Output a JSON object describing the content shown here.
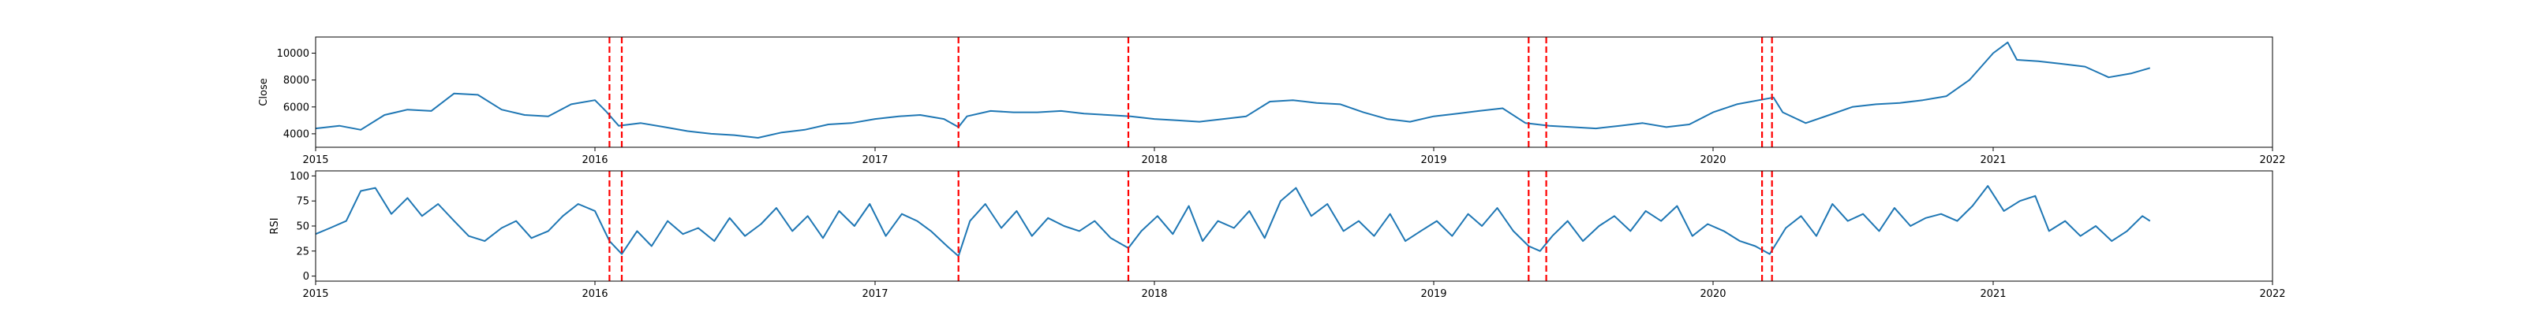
{
  "chart_data": [
    {
      "type": "line",
      "ylabel": "Close",
      "xlim": [
        "2015-01-01",
        "2022-01-01"
      ],
      "ylim": [
        3000,
        11200
      ],
      "x_ticks": [
        "2015",
        "2016",
        "2017",
        "2018",
        "2019",
        "2020",
        "2021",
        "2022"
      ],
      "y_ticks": [
        "4000",
        "6000",
        "8000",
        "10000"
      ],
      "y_tick_values": [
        4000,
        6000,
        8000,
        10000
      ],
      "grid": false,
      "line_color": "#1f77b4",
      "series": [
        {
          "x": [
            "2015-01-01",
            "2015-02-01",
            "2015-03-01",
            "2015-04-01",
            "2015-05-01",
            "2015-06-01",
            "2015-07-01",
            "2015-08-01",
            "2015-09-01",
            "2015-10-01",
            "2015-11-01",
            "2015-12-01",
            "2016-01-01",
            "2016-01-15",
            "2016-02-01",
            "2016-03-01",
            "2016-04-01",
            "2016-05-01",
            "2016-06-01",
            "2016-07-01",
            "2016-08-01",
            "2016-09-01",
            "2016-10-01",
            "2016-11-01",
            "2016-12-01",
            "2017-01-01",
            "2017-02-01",
            "2017-03-01",
            "2017-04-01",
            "2017-04-20",
            "2017-05-01",
            "2017-06-01",
            "2017-07-01",
            "2017-08-01",
            "2017-09-01",
            "2017-10-01",
            "2017-11-01",
            "2017-12-01",
            "2018-01-01",
            "2018-02-01",
            "2018-03-01",
            "2018-04-01",
            "2018-05-01",
            "2018-06-01",
            "2018-07-01",
            "2018-08-01",
            "2018-09-01",
            "2018-10-01",
            "2018-11-01",
            "2018-12-01",
            "2019-01-01",
            "2019-02-01",
            "2019-03-01",
            "2019-04-01",
            "2019-05-01",
            "2019-06-01",
            "2019-07-01",
            "2019-08-01",
            "2019-09-01",
            "2019-10-01",
            "2019-11-01",
            "2019-12-01",
            "2020-01-01",
            "2020-02-01",
            "2020-03-01",
            "2020-03-20",
            "2020-04-01",
            "2020-05-01",
            "2020-06-01",
            "2020-07-01",
            "2020-08-01",
            "2020-09-01",
            "2020-10-01",
            "2020-11-01",
            "2020-12-01",
            "2021-01-01",
            "2021-01-20",
            "2021-02-01",
            "2021-03-01",
            "2021-04-01",
            "2021-05-01",
            "2021-06-01",
            "2021-07-01",
            "2021-07-25"
          ],
          "values": [
            4400,
            4600,
            4300,
            5400,
            5800,
            5700,
            7000,
            6900,
            5800,
            5400,
            5300,
            6200,
            6500,
            5700,
            4600,
            4800,
            4500,
            4200,
            4000,
            3900,
            3700,
            4100,
            4300,
            4700,
            4800,
            5100,
            5300,
            5400,
            5100,
            4500,
            5300,
            5700,
            5600,
            5600,
            5700,
            5500,
            5400,
            5300,
            5100,
            5000,
            4900,
            5100,
            5300,
            6400,
            6500,
            6300,
            6200,
            5600,
            5100,
            4900,
            5300,
            5500,
            5700,
            5900,
            4800,
            4600,
            4500,
            4400,
            4600,
            4800,
            4500,
            4700,
            5600,
            6200,
            6500,
            6700,
            5600,
            4800,
            5400,
            6000,
            6200,
            6300,
            6500,
            6800,
            8000,
            10000,
            10800,
            9500,
            9400,
            9200,
            9000,
            8200,
            8500,
            8900
          ]
        }
      ]
    },
    {
      "type": "line",
      "ylabel": "RSI",
      "xlim": [
        "2015-01-01",
        "2022-01-01"
      ],
      "ylim": [
        -5,
        105
      ],
      "x_ticks": [
        "2015",
        "2016",
        "2017",
        "2018",
        "2019",
        "2020",
        "2021",
        "2022"
      ],
      "y_ticks": [
        "0",
        "25",
        "50",
        "75",
        "100"
      ],
      "y_tick_values": [
        0,
        25,
        50,
        75,
        100
      ],
      "grid": false,
      "line_color": "#1f77b4",
      "series": [
        {
          "x": [
            "2015-01-01",
            "2015-01-20",
            "2015-02-10",
            "2015-03-01",
            "2015-03-20",
            "2015-04-10",
            "2015-05-01",
            "2015-05-20",
            "2015-06-10",
            "2015-07-01",
            "2015-07-20",
            "2015-08-10",
            "2015-09-01",
            "2015-09-20",
            "2015-10-10",
            "2015-11-01",
            "2015-11-20",
            "2015-12-10",
            "2016-01-01",
            "2016-01-20",
            "2016-02-05",
            "2016-02-25",
            "2016-03-15",
            "2016-04-05",
            "2016-04-25",
            "2016-05-15",
            "2016-06-05",
            "2016-06-25",
            "2016-07-15",
            "2016-08-05",
            "2016-08-25",
            "2016-09-15",
            "2016-10-05",
            "2016-10-25",
            "2016-11-15",
            "2016-12-05",
            "2016-12-25",
            "2017-01-15",
            "2017-02-05",
            "2017-02-25",
            "2017-03-15",
            "2017-04-05",
            "2017-04-20",
            "2017-05-05",
            "2017-05-25",
            "2017-06-15",
            "2017-07-05",
            "2017-07-25",
            "2017-08-15",
            "2017-09-05",
            "2017-09-25",
            "2017-10-15",
            "2017-11-05",
            "2017-11-28",
            "2017-12-15",
            "2018-01-05",
            "2018-01-25",
            "2018-02-15",
            "2018-03-05",
            "2018-03-25",
            "2018-04-15",
            "2018-05-05",
            "2018-05-25",
            "2018-06-15",
            "2018-07-05",
            "2018-07-25",
            "2018-08-15",
            "2018-09-05",
            "2018-09-25",
            "2018-10-15",
            "2018-11-05",
            "2018-11-25",
            "2018-12-15",
            "2019-01-05",
            "2019-01-25",
            "2019-02-15",
            "2019-03-05",
            "2019-03-25",
            "2019-04-15",
            "2019-05-05",
            "2019-05-20",
            "2019-06-05",
            "2019-06-25",
            "2019-07-15",
            "2019-08-05",
            "2019-08-25",
            "2019-09-15",
            "2019-10-05",
            "2019-10-25",
            "2019-11-15",
            "2019-12-05",
            "2019-12-25",
            "2020-01-15",
            "2020-02-05",
            "2020-02-25",
            "2020-03-15",
            "2020-04-05",
            "2020-04-25",
            "2020-05-15",
            "2020-06-05",
            "2020-06-25",
            "2020-07-15",
            "2020-08-05",
            "2020-08-25",
            "2020-09-15",
            "2020-10-05",
            "2020-10-25",
            "2020-11-15",
            "2020-12-05",
            "2020-12-25",
            "2021-01-15",
            "2021-02-05",
            "2021-02-25",
            "2021-03-15",
            "2021-04-05",
            "2021-04-25",
            "2021-05-15",
            "2021-06-05",
            "2021-06-25",
            "2021-07-15",
            "2021-07-25"
          ],
          "values": [
            42,
            48,
            55,
            85,
            88,
            62,
            78,
            60,
            72,
            55,
            40,
            35,
            48,
            55,
            38,
            45,
            60,
            72,
            65,
            35,
            22,
            45,
            30,
            55,
            42,
            48,
            35,
            58,
            40,
            52,
            68,
            45,
            60,
            38,
            65,
            50,
            72,
            40,
            62,
            55,
            45,
            30,
            20,
            55,
            72,
            48,
            65,
            40,
            58,
            50,
            45,
            55,
            38,
            28,
            45,
            60,
            42,
            70,
            35,
            55,
            48,
            65,
            38,
            75,
            88,
            60,
            72,
            45,
            55,
            40,
            62,
            35,
            45,
            55,
            40,
            62,
            50,
            68,
            45,
            30,
            25,
            40,
            55,
            35,
            50,
            60,
            45,
            65,
            55,
            70,
            40,
            52,
            45,
            35,
            30,
            22,
            48,
            60,
            40,
            72,
            55,
            62,
            45,
            68,
            50,
            58,
            62,
            55,
            70,
            90,
            65,
            75,
            80,
            45,
            55,
            40,
            50,
            35,
            45,
            60,
            55
          ]
        }
      ]
    }
  ],
  "event_lines": {
    "color": "#ff0000",
    "dates": [
      "2016-01-20",
      "2016-02-05",
      "2017-04-20",
      "2017-11-28",
      "2019-05-05",
      "2019-05-28",
      "2020-03-05",
      "2020-03-18"
    ]
  }
}
